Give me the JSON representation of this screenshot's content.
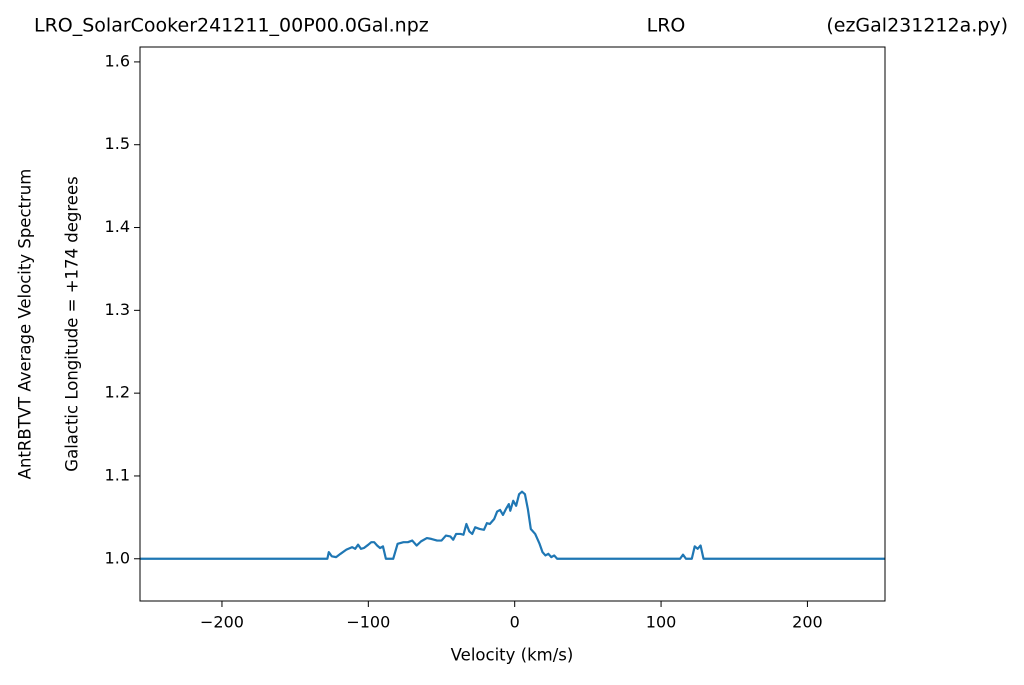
{
  "chart_data": {
    "type": "line",
    "title": [
      "LRO_SolarCooker241211_00P00.0Gal.npz",
      "LRO",
      "(ezGal231212a.py)"
    ],
    "xlabel": "Velocity (km/s)",
    "ylabel": [
      "AntRBTVT Average Velocity Spectrum",
      "Galactic Longitude = +174 degrees"
    ],
    "color": "#1f77b4",
    "xlim": [
      -256,
      253
    ],
    "ylim": [
      0.949,
      1.618
    ],
    "xticks": [
      {
        "value": -200,
        "label": "−200"
      },
      {
        "value": -100,
        "label": "−100"
      },
      0,
      100,
      200
    ],
    "yticks": [
      {
        "value": 1,
        "label": "1.0"
      },
      1.1,
      1.2,
      1.3,
      1.4,
      1.5,
      1.6
    ],
    "x": [
      -256,
      -128,
      -127,
      -125,
      -122,
      -119,
      -115,
      -111,
      -109,
      -107,
      -105,
      -103,
      -100,
      -98,
      -96,
      -94,
      -92,
      -90,
      -88,
      -83,
      -80,
      -76,
      -73,
      -70,
      -67,
      -64,
      -60,
      -57,
      -53,
      -50,
      -47,
      -44,
      -42,
      -40,
      -37,
      -35,
      -33,
      -31,
      -29,
      -27,
      -24,
      -21,
      -19,
      -17,
      -14,
      -12,
      -10,
      -8,
      -6,
      -4,
      -3,
      -1,
      1,
      3,
      5,
      7,
      9,
      11,
      14,
      17,
      19,
      21,
      23,
      25,
      27,
      29,
      113,
      115,
      117,
      121,
      123,
      125,
      127,
      129,
      253
    ],
    "values": [
      1.0,
      1.0,
      1.008,
      1.003,
      1.002,
      1.006,
      1.011,
      1.014,
      1.012,
      1.017,
      1.012,
      1.013,
      1.017,
      1.02,
      1.02,
      1.016,
      1.013,
      1.015,
      1.0,
      1.0,
      1.018,
      1.02,
      1.02,
      1.022,
      1.016,
      1.021,
      1.025,
      1.024,
      1.022,
      1.022,
      1.028,
      1.027,
      1.023,
      1.03,
      1.03,
      1.029,
      1.042,
      1.033,
      1.03,
      1.038,
      1.036,
      1.035,
      1.043,
      1.042,
      1.048,
      1.057,
      1.059,
      1.053,
      1.06,
      1.066,
      1.058,
      1.07,
      1.064,
      1.078,
      1.081,
      1.078,
      1.06,
      1.036,
      1.03,
      1.018,
      1.008,
      1.004,
      1.006,
      1.002,
      1.004,
      1.0,
      1.0,
      1.005,
      1.0,
      1.0,
      1.015,
      1.012,
      1.016,
      1.0,
      1.0
    ]
  }
}
